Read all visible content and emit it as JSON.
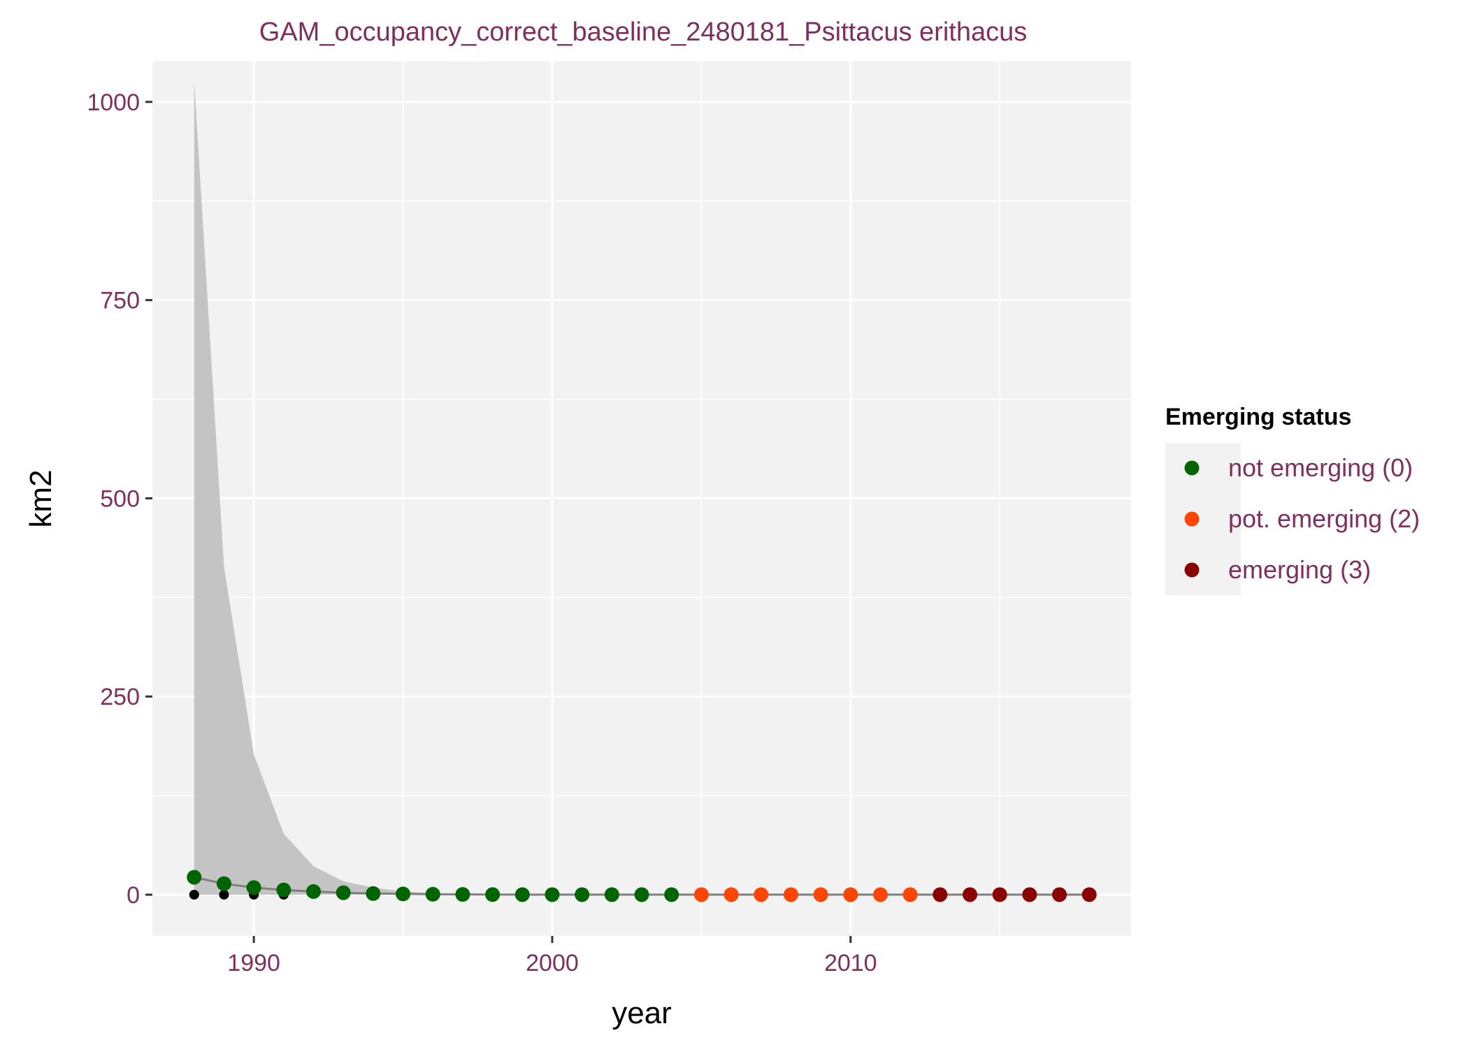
{
  "chart_data": {
    "type": "scatter",
    "title": "GAM_occupancy_correct_baseline_2480181_Psittacus erithacus",
    "xlabel": "year",
    "ylabel": "km2",
    "xlim": [
      1986.6,
      2019.4
    ],
    "ylim": [
      -52,
      1051
    ],
    "x_ticks": [
      1990,
      2000,
      2010
    ],
    "x_tick_labels": [
      "1990",
      "2000",
      "2010"
    ],
    "y_ticks": [
      0,
      250,
      500,
      750,
      1000
    ],
    "y_tick_labels": [
      "0",
      "250",
      "500",
      "750",
      "1000"
    ],
    "grid": true,
    "legend_position": "right",
    "legend": {
      "title": "Emerging status",
      "items": [
        {
          "label": "not emerging (0)",
          "color": "#006400"
        },
        {
          "label": "pot. emerging (2)",
          "color": "#ff4500"
        },
        {
          "label": "emerging (3)",
          "color": "#8b0000"
        }
      ]
    },
    "colors": {
      "panel": "#f2f2f2",
      "grid": "#ffffff",
      "ribbon": "#c4c4c4",
      "fit_line": "#808080",
      "observed": "#000000",
      "not_emerging": "#006400",
      "pot_emerging": "#ff4500",
      "emerging": "#8b0000"
    },
    "ribbon": {
      "x": [
        1988,
        1989,
        1990,
        1991,
        1992,
        1993,
        1994,
        1995,
        1996,
        1997,
        1998,
        1999,
        2000,
        2001,
        2002,
        2003,
        2004,
        2005,
        2006,
        2007,
        2008,
        2009,
        2010,
        2011,
        2012,
        2013,
        2014,
        2015,
        2016,
        2017,
        2018
      ],
      "upper": [
        1026,
        414,
        177,
        77,
        36,
        17,
        9,
        4,
        2,
        1,
        0.5,
        0.3,
        0.2,
        0.1,
        0.1,
        0.1,
        0.1,
        0.1,
        0.1,
        0.1,
        0.1,
        0.1,
        0.1,
        0.1,
        0.1,
        0.1,
        0.1,
        0.1,
        0.1,
        0.1,
        0.1
      ],
      "lower": [
        0,
        0,
        0,
        0,
        0,
        0,
        0,
        0,
        0,
        0,
        0,
        0,
        0,
        0,
        0,
        0,
        0,
        0,
        0,
        0,
        0,
        0,
        0,
        0,
        0,
        0,
        0,
        0,
        0,
        0,
        0
      ]
    },
    "fit": {
      "x": [
        1988,
        1989,
        1990,
        1991,
        1992,
        1993,
        1994,
        1995,
        1996,
        1997,
        1998,
        1999,
        2000,
        2001,
        2002,
        2003,
        2004,
        2005,
        2006,
        2007,
        2008,
        2009,
        2010,
        2011,
        2012,
        2013,
        2014,
        2015,
        2016,
        2017,
        2018
      ],
      "y": [
        22,
        14,
        9,
        6,
        4,
        2.5,
        1.5,
        1,
        0.6,
        0.4,
        0.2,
        0.1,
        0.1,
        0.1,
        0.1,
        0.1,
        0.1,
        0.1,
        0.1,
        0.1,
        0.1,
        0.1,
        0.1,
        0.1,
        0.1,
        0.1,
        0.1,
        0.1,
        0.1,
        0.1,
        0.1
      ]
    },
    "observed": {
      "x": [
        1988,
        1989,
        1990,
        1991,
        2003,
        2009,
        2018
      ],
      "y": [
        0,
        0,
        0,
        0,
        2,
        2,
        2
      ]
    },
    "series": [
      {
        "name": "not emerging (0)",
        "color": "#006400",
        "x": [
          1988,
          1989,
          1990,
          1991,
          1992,
          1993,
          1994,
          1995,
          1996,
          1997,
          1998,
          1999,
          2000,
          2001,
          2002,
          2003,
          2004
        ],
        "y": [
          22,
          14,
          9,
          6,
          4,
          2.5,
          1.5,
          1,
          0.6,
          0.4,
          0.2,
          0.1,
          0.1,
          0.1,
          0.1,
          0.1,
          0.1
        ]
      },
      {
        "name": "pot. emerging (2)",
        "color": "#ff4500",
        "x": [
          2005,
          2006,
          2007,
          2008,
          2009,
          2010,
          2011,
          2012
        ],
        "y": [
          0.1,
          0.1,
          0.1,
          0.1,
          0.1,
          0.1,
          0.1,
          0.1
        ]
      },
      {
        "name": "emerging (3)",
        "color": "#8b0000",
        "x": [
          2013,
          2014,
          2015,
          2016,
          2017,
          2018
        ],
        "y": [
          0.1,
          0.1,
          0.1,
          0.1,
          0.1,
          0.1
        ]
      }
    ]
  }
}
